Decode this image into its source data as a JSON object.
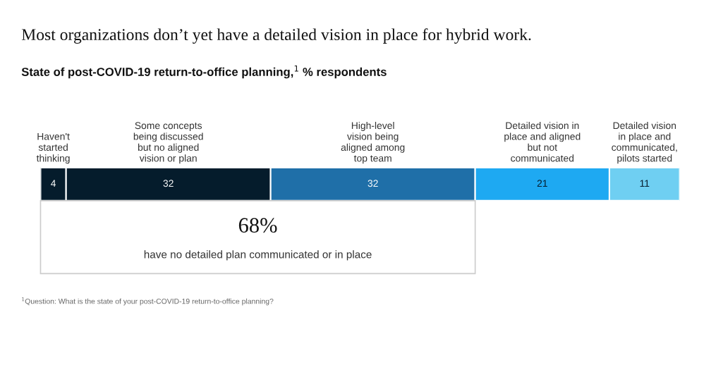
{
  "chart_data": {
    "type": "bar",
    "orientation": "horizontal",
    "stacked": true,
    "title": "Most organizations don’t yet have a detailed vision in place for hybrid work.",
    "subtitle": "State of post-COVID-19 return-to-office planning,$^{1}$ % respondents",
    "categories": [
      null
    ],
    "series": [
      {
        "name": "Haven't\nstarted\nthinking",
        "color": "#051c2c",
        "values": [
          4
        ]
      },
      {
        "name": "Some concepts\nbeing discussed\nbut no aligned\nvision or plan",
        "color": "#051c2c",
        "values": [
          32
        ]
      },
      {
        "name": "High-level\nvision being\naligned among\ntop team",
        "color": "#1f6fa8",
        "values": [
          32
        ]
      },
      {
        "name": "Detailed vision in\nplace and aligned\nbut not\ncommunicated",
        "color": "#1ea9f2",
        "values": [
          21
        ]
      },
      {
        "name": "Detailed vision\nin place and\ncommunicated,\npilots started",
        "color": "#6fcff2",
        "values": [
          11
        ]
      }
    ],
    "xlim": [
      0,
      100
    ],
    "data_labels": true,
    "annotations": [
      "68%",
      "have no detailed plan communicated or in place",
      "$^{1}$Question: What is the state of your post-COVID-19 return-to-office planning?"
    ]
  }
}
